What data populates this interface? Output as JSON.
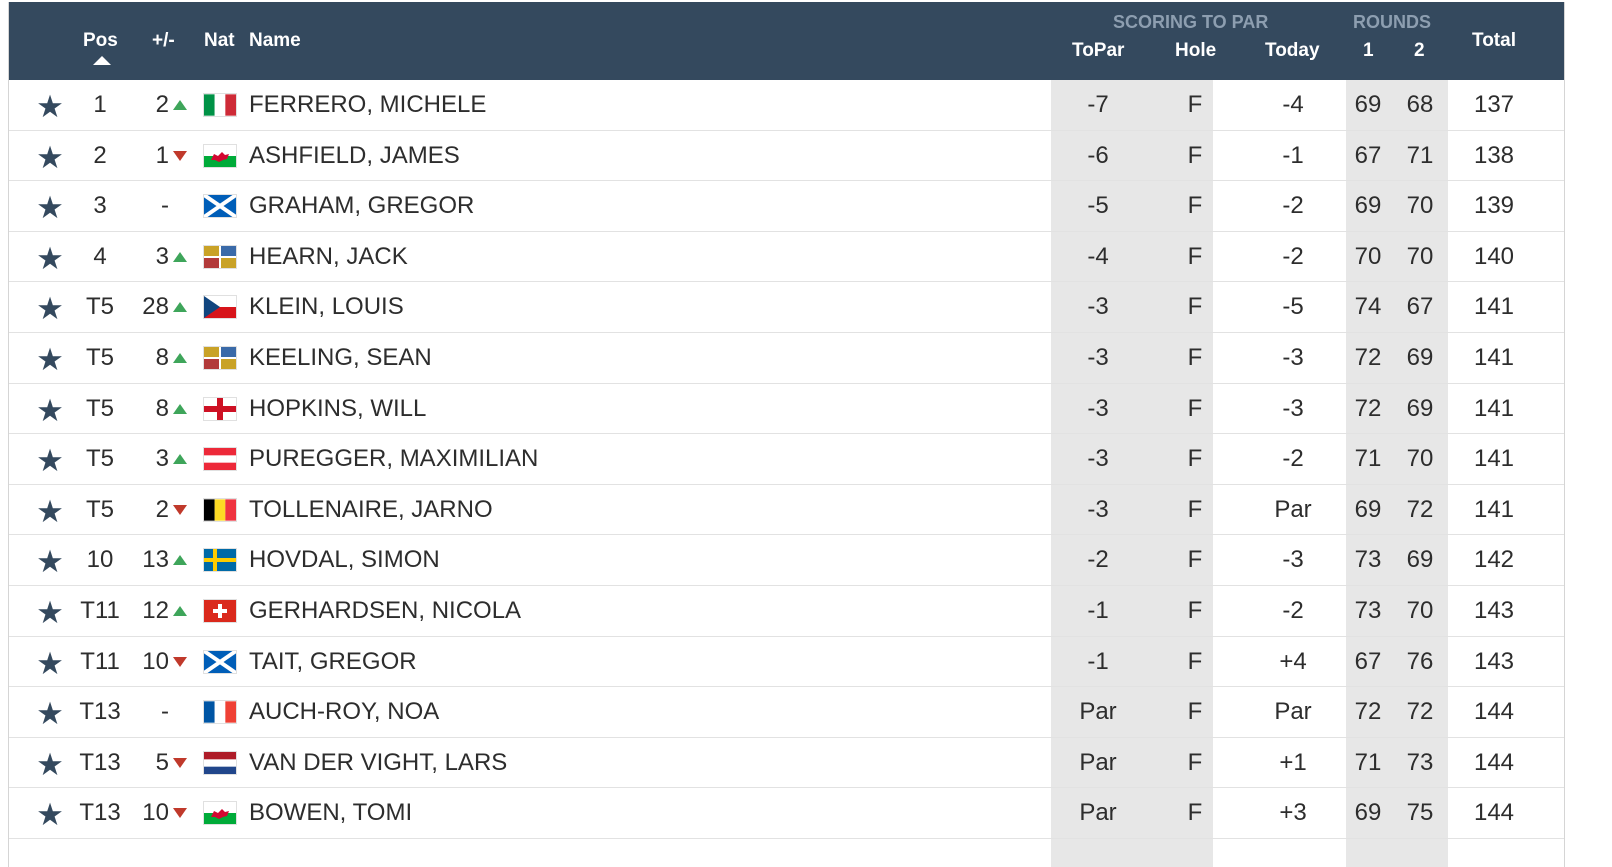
{
  "header": {
    "pos": "Pos",
    "move": "+/-",
    "nat": "Nat",
    "name": "Name",
    "scoring_group": "SCORING TO PAR",
    "topar": "ToPar",
    "hole": "Hole",
    "today": "Today",
    "rounds_group": "ROUNDS",
    "r1": "1",
    "r2": "2",
    "total": "Total"
  },
  "colors": {
    "header_bg": "#34495e",
    "up": "#3ea55a",
    "down": "#c0392b",
    "shade": "#e7e7e7"
  },
  "players": [
    {
      "pos": "1",
      "move": "2",
      "dir": "up",
      "nat": "italy-flag",
      "name": "FERRERO, MICHELE",
      "topar": "-7",
      "hole": "F",
      "today": "-4",
      "r1": "69",
      "r2": "68",
      "total": "137"
    },
    {
      "pos": "2",
      "move": "1",
      "dir": "down",
      "nat": "wales-flag",
      "name": "ASHFIELD, JAMES",
      "topar": "-6",
      "hole": "F",
      "today": "-1",
      "r1": "67",
      "r2": "71",
      "total": "138"
    },
    {
      "pos": "3",
      "move": "-",
      "dir": "none",
      "nat": "scotland-flag",
      "name": "GRAHAM, GREGOR",
      "topar": "-5",
      "hole": "F",
      "today": "-2",
      "r1": "69",
      "r2": "70",
      "total": "139"
    },
    {
      "pos": "4",
      "move": "3",
      "dir": "up",
      "nat": "ireland-flag",
      "name": "HEARN, JACK",
      "topar": "-4",
      "hole": "F",
      "today": "-2",
      "r1": "70",
      "r2": "70",
      "total": "140"
    },
    {
      "pos": "T5",
      "move": "28",
      "dir": "up",
      "nat": "czech-flag",
      "name": "KLEIN, LOUIS",
      "topar": "-3",
      "hole": "F",
      "today": "-5",
      "r1": "74",
      "r2": "67",
      "total": "141"
    },
    {
      "pos": "T5",
      "move": "8",
      "dir": "up",
      "nat": "ireland-flag",
      "name": "KEELING, SEAN",
      "topar": "-3",
      "hole": "F",
      "today": "-3",
      "r1": "72",
      "r2": "69",
      "total": "141"
    },
    {
      "pos": "T5",
      "move": "8",
      "dir": "up",
      "nat": "england-flag",
      "name": "HOPKINS, WILL",
      "topar": "-3",
      "hole": "F",
      "today": "-3",
      "r1": "72",
      "r2": "69",
      "total": "141"
    },
    {
      "pos": "T5",
      "move": "3",
      "dir": "up",
      "nat": "austria-flag",
      "name": "PUREGGER, MAXIMILIAN",
      "topar": "-3",
      "hole": "F",
      "today": "-2",
      "r1": "71",
      "r2": "70",
      "total": "141"
    },
    {
      "pos": "T5",
      "move": "2",
      "dir": "down",
      "nat": "belgium-flag",
      "name": "TOLLENAIRE, JARNO",
      "topar": "-3",
      "hole": "F",
      "today": "Par",
      "r1": "69",
      "r2": "72",
      "total": "141"
    },
    {
      "pos": "10",
      "move": "13",
      "dir": "up",
      "nat": "sweden-flag",
      "name": "HOVDAL, SIMON",
      "topar": "-2",
      "hole": "F",
      "today": "-3",
      "r1": "73",
      "r2": "69",
      "total": "142"
    },
    {
      "pos": "T11",
      "move": "12",
      "dir": "up",
      "nat": "switzerland-flag",
      "name": "GERHARDSEN, NICOLA",
      "topar": "-1",
      "hole": "F",
      "today": "-2",
      "r1": "73",
      "r2": "70",
      "total": "143"
    },
    {
      "pos": "T11",
      "move": "10",
      "dir": "down",
      "nat": "scotland-flag",
      "name": "TAIT, GREGOR",
      "topar": "-1",
      "hole": "F",
      "today": "+4",
      "r1": "67",
      "r2": "76",
      "total": "143"
    },
    {
      "pos": "T13",
      "move": "-",
      "dir": "none",
      "nat": "france-flag",
      "name": "AUCH-ROY, NOA",
      "topar": "Par",
      "hole": "F",
      "today": "Par",
      "r1": "72",
      "r2": "72",
      "total": "144"
    },
    {
      "pos": "T13",
      "move": "5",
      "dir": "down",
      "nat": "netherlands-flag",
      "name": "VAN DER VIGHT, LARS",
      "topar": "Par",
      "hole": "F",
      "today": "+1",
      "r1": "71",
      "r2": "73",
      "total": "144"
    },
    {
      "pos": "T13",
      "move": "10",
      "dir": "down",
      "nat": "wales-flag",
      "name": "BOWEN, TOMI",
      "topar": "Par",
      "hole": "F",
      "today": "+3",
      "r1": "69",
      "r2": "75",
      "total": "144"
    }
  ]
}
